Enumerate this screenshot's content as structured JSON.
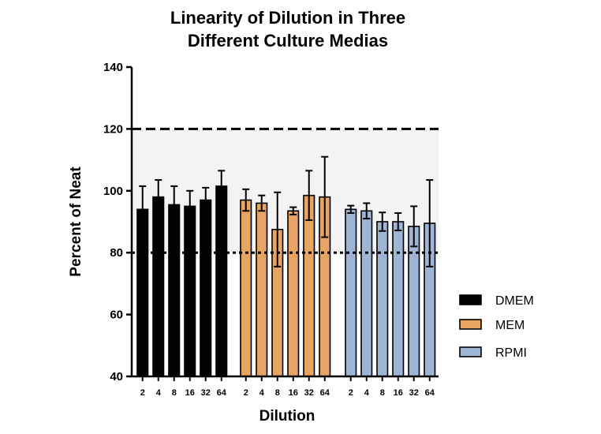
{
  "chart_data": {
    "type": "bar",
    "title_line1": "Linearity of Dilution in Three",
    "title_line2": "Different Culture Medias",
    "xlabel": "Dilution",
    "ylabel": "Percent of Neat",
    "ylim": [
      40,
      140
    ],
    "yticks": [
      "40",
      "60",
      "80",
      "100",
      "120",
      "140"
    ],
    "shaded_band": [
      80,
      120
    ],
    "reference_lines": [
      {
        "value": 120,
        "style": "dashed"
      },
      {
        "value": 80,
        "style": "dotted"
      }
    ],
    "categories": [
      "2",
      "4",
      "8",
      "16",
      "32",
      "64"
    ],
    "legend_position": "right",
    "series": [
      {
        "name": "DMEM",
        "color": "#000000",
        "values": [
          94,
          98,
          95.5,
          95,
          97,
          101.5
        ],
        "errors": [
          7.5,
          5.5,
          6,
          5,
          4,
          5
        ]
      },
      {
        "name": "MEM",
        "color": "#E8A462",
        "values": [
          97,
          96,
          87.5,
          93.5,
          98.5,
          98
        ],
        "errors": [
          3.5,
          2.5,
          12,
          1.2,
          8,
          13
        ]
      },
      {
        "name": "RPMI",
        "color": "#9FB5D5",
        "values": [
          94,
          93.5,
          90,
          90,
          88.5,
          89.5
        ],
        "errors": [
          1.2,
          2.5,
          3,
          2.8,
          6.5,
          14
        ]
      }
    ]
  }
}
